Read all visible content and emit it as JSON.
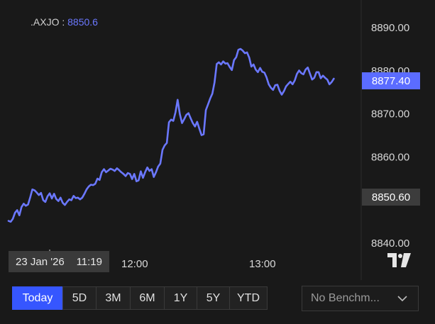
{
  "symbol": {
    "name": ".AXJO :",
    "value": "8850.6"
  },
  "crosshair": {
    "date": "23 Jan '26",
    "time": "11:19"
  },
  "time_ticks": [
    "12:00",
    "13:00"
  ],
  "price_badges": {
    "current": "8877.40",
    "open": "8850.60"
  },
  "range_buttons": [
    "Today",
    "5D",
    "3M",
    "6M",
    "1Y",
    "5Y",
    "YTD"
  ],
  "active_range": "Today",
  "benchmark": {
    "label": "No Benchm..."
  },
  "logo": "tradingview-logo-icon",
  "colors": {
    "line": "#6b78ff",
    "accent": "#3656ff",
    "current_badge": "#5b6cff",
    "background": "#191919"
  },
  "chart_data": {
    "type": "line",
    "title": "",
    "xlabel": "",
    "ylabel": "",
    "y_ticks": [
      "8890.00",
      "8880.00",
      "8870.00",
      "8860.00",
      "8850.00",
      "8840.00"
    ],
    "ylim": [
      8837.8,
      8892.7
    ],
    "x_ticks": [
      "12:00",
      "13:00"
    ],
    "x_minutes_range": [
      0,
      305
    ],
    "series": [
      {
        "name": "",
        "x": [
          0,
          2,
          4,
          6,
          8,
          10,
          12,
          14,
          16,
          18,
          20,
          22,
          24,
          26,
          28,
          30,
          32,
          34,
          36,
          38,
          40,
          42,
          44,
          46,
          48,
          50,
          52,
          54,
          56,
          58,
          60,
          62,
          64,
          66,
          68,
          70,
          72,
          74,
          76,
          78,
          80,
          82,
          84,
          86,
          88,
          90,
          92,
          94,
          96,
          98,
          100,
          102,
          104,
          106,
          108,
          110,
          112,
          114,
          116,
          118,
          120,
          122,
          124,
          126,
          128,
          130,
          132,
          134,
          136,
          138,
          140,
          142,
          144,
          146,
          148,
          150,
          152,
          154,
          156,
          158,
          160,
          162,
          164,
          166,
          168,
          170,
          172,
          174,
          176,
          178,
          180,
          182,
          184,
          186,
          188,
          190,
          192,
          194,
          196,
          198,
          200,
          202,
          204,
          206,
          208,
          210,
          212,
          214,
          216,
          218,
          220,
          222,
          224,
          226,
          228,
          230,
          232,
          234,
          236,
          238,
          240,
          242,
          244,
          246,
          248,
          250,
          252,
          254,
          256,
          258,
          260,
          262,
          264,
          266,
          268,
          270,
          272,
          274,
          276,
          278,
          280,
          282,
          284,
          286,
          288,
          290,
          292,
          294,
          296,
          298,
          300
        ],
        "values": [
          8845.0,
          8844.8,
          8845.5,
          8846.9,
          8847.5,
          8846.3,
          8848.2,
          8849.0,
          8848.5,
          8848.8,
          8850.5,
          8852.3,
          8852.1,
          8851.6,
          8851.0,
          8851.5,
          8849.8,
          8849.4,
          8850.7,
          8851.4,
          8850.2,
          8851.3,
          8850.1,
          8849.6,
          8850.4,
          8849.2,
          8848.7,
          8849.4,
          8850.0,
          8849.8,
          8850.8,
          8850.3,
          8850.4,
          8850.0,
          8850.4,
          8851.3,
          8852.3,
          8853.0,
          8853.4,
          8853.3,
          8853.6,
          8854.8,
          8854.5,
          8856.3,
          8857.0,
          8856.3,
          8856.7,
          8857.1,
          8856.9,
          8856.6,
          8857.2,
          8856.8,
          8856.3,
          8855.9,
          8855.4,
          8856.1,
          8855.9,
          8854.7,
          8855.9,
          8854.2,
          8854.4,
          8856.5,
          8855.0,
          8856.3,
          8857.4,
          8856.6,
          8857.0,
          8855.2,
          8856.3,
          8857.6,
          8858.3,
          8861.5,
          8862.5,
          8863.1,
          8867.9,
          8868.5,
          8868.2,
          8870.2,
          8873.1,
          8869.8,
          8867.7,
          8868.6,
          8869.6,
          8870.0,
          8868.8,
          8867.7,
          8866.9,
          8868.0,
          8866.4,
          8864.9,
          8865.1,
          8870.7,
          8872.0,
          8873.4,
          8874.5,
          8877.1,
          8881.4,
          8881.8,
          8881.3,
          8882.0,
          8881.5,
          8881.6,
          8880.7,
          8880.0,
          8882.3,
          8883.0,
          8884.7,
          8884.9,
          8884.5,
          8883.9,
          8884.1,
          8882.9,
          8880.8,
          8881.3,
          8880.1,
          8879.5,
          8880.5,
          8879.6,
          8879.4,
          8878.3,
          8876.7,
          8875.9,
          8875.4,
          8876.5,
          8876.6,
          8875.2,
          8874.3,
          8875.1,
          8876.2,
          8876.8,
          8877.3,
          8876.7,
          8877.6,
          8879.1,
          8879.9,
          8879.3,
          8879.0,
          8880.1,
          8880.6,
          8879.2,
          8877.8,
          8878.2,
          8879.5,
          8879.5,
          8878.1,
          8878.7,
          8878.2,
          8877.8,
          8876.7,
          8877.2,
          8878.0
        ]
      }
    ]
  }
}
